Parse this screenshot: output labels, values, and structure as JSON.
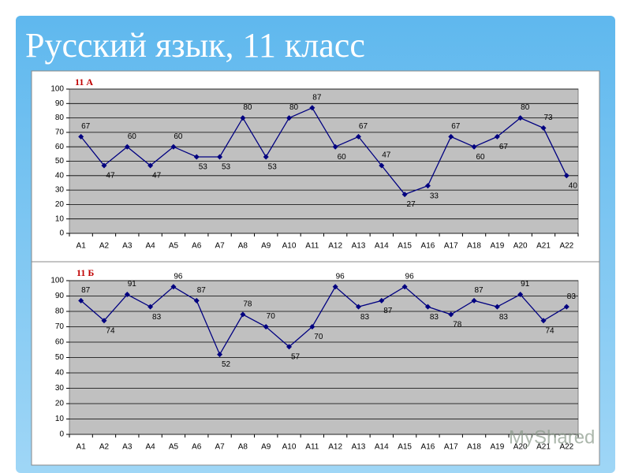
{
  "title": "Русский язык, 11 класс",
  "watermark": "MyShared",
  "chart_data": [
    {
      "type": "line",
      "title": "11 А",
      "categories": [
        "A1",
        "A2",
        "A3",
        "A4",
        "A5",
        "A6",
        "A7",
        "A8",
        "A9",
        "A10",
        "A11",
        "A12",
        "A13",
        "A14",
        "A15",
        "A16",
        "A17",
        "A18",
        "A19",
        "A20",
        "A21",
        "A22"
      ],
      "values": [
        67,
        47,
        60,
        47,
        60,
        53,
        53,
        80,
        53,
        80,
        87,
        60,
        67,
        47,
        27,
        33,
        67,
        60,
        67,
        80,
        73,
        40
      ],
      "color": "#000080",
      "ylim": [
        0,
        100
      ],
      "yticks": [
        0,
        10,
        20,
        30,
        40,
        50,
        60,
        70,
        80,
        90,
        100
      ],
      "grid": true
    },
    {
      "type": "line",
      "title": "11 Б",
      "categories": [
        "A1",
        "A2",
        "A3",
        "A4",
        "A5",
        "A6",
        "A7",
        "A8",
        "A9",
        "A10",
        "A11",
        "A12",
        "A13",
        "A14",
        "A15",
        "A16",
        "A17",
        "A18",
        "A19",
        "A20",
        "A21",
        "A22"
      ],
      "values": [
        87,
        74,
        91,
        83,
        96,
        87,
        52,
        78,
        70,
        57,
        70,
        96,
        83,
        87,
        96,
        83,
        78,
        87,
        83,
        91,
        74,
        83
      ],
      "color": "#000080",
      "ylim": [
        0,
        100
      ],
      "yticks": [
        0,
        10,
        20,
        30,
        40,
        50,
        60,
        70,
        80,
        90,
        100
      ],
      "grid": true
    }
  ]
}
